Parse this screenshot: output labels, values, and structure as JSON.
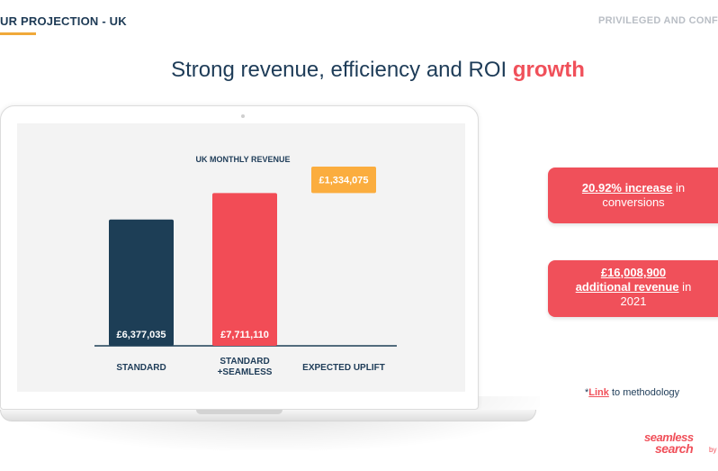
{
  "header": {
    "left_title": "UR PROJECTION - UK",
    "right_label": "PRIVILEGED AND CONF"
  },
  "title": {
    "main": "Strong revenue, efficiency and ROI ",
    "accent": "growth"
  },
  "chart_data": {
    "type": "bar",
    "title": "UK MONTHLY REVENUE",
    "categories": [
      "STANDARD",
      "STANDARD +SEAMLESS",
      "EXPECTED UPLIFT"
    ],
    "category_lines": [
      [
        "STANDARD"
      ],
      [
        "STANDARD",
        "+SEAMLESS"
      ],
      [
        "EXPECTED UPLIFT"
      ]
    ],
    "values": [
      6377035,
      7711110,
      1334075
    ],
    "bar_base": [
      0,
      0,
      7711110
    ],
    "labels": [
      "£6,377,035",
      "£7,711,110",
      "£1,334,075"
    ],
    "colors": [
      "#1d3e56",
      "#f24c56",
      "#fbad3e"
    ],
    "ylim": [
      0,
      10000000
    ],
    "grid": false,
    "legend": "none"
  },
  "callouts": [
    {
      "strong": "20.92% increase",
      "rest": " in",
      "line2": "conversions"
    },
    {
      "strong_line1": "£16,008,900",
      "strong_line2": "additional revenue",
      "rest": " in",
      "line3": "2021"
    }
  ],
  "methodology": {
    "prefix": "*",
    "link": "Link",
    "suffix": " to methodology"
  },
  "logo": {
    "line1": "seamless",
    "line2": "search",
    "by": "by"
  },
  "colors": {
    "navy": "#1d3e56",
    "red": "#f24c56",
    "orange": "#fbad3e",
    "underline": "#f0a93a"
  }
}
